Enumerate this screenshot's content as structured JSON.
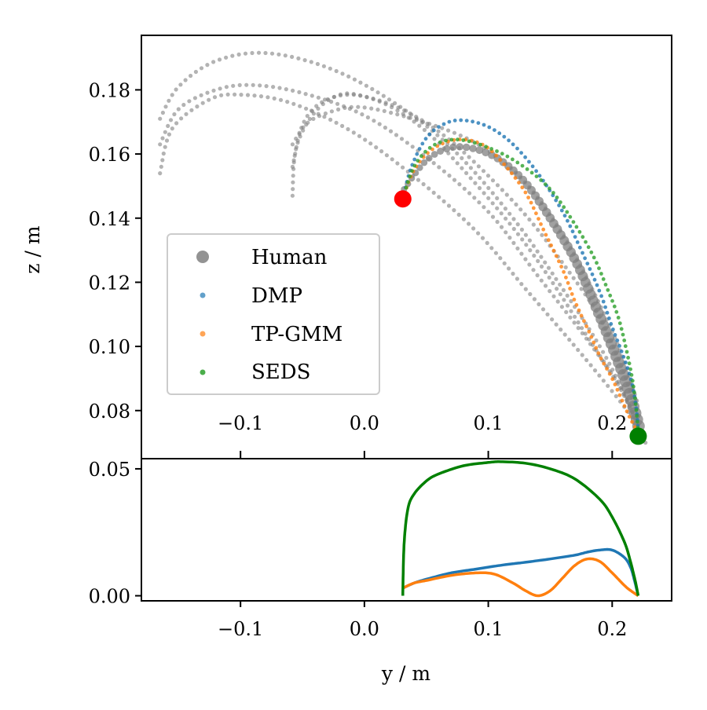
{
  "chart_data": [
    {
      "type": "scatter",
      "panel": "top",
      "title": "",
      "xlabel": "",
      "ylabel": "z / m",
      "xlim": [
        -0.18,
        0.248
      ],
      "ylim": [
        0.065,
        0.197
      ],
      "grid": false,
      "legend_position": "lower-left",
      "xticks": [
        -0.1,
        0.0,
        0.1,
        0.2
      ],
      "xtick_labels": [
        "−0.1",
        "0.0",
        "0.1",
        "0.2"
      ],
      "yticks": [
        0.08,
        0.1,
        0.12,
        0.14,
        0.16,
        0.18
      ],
      "ytick_labels": [
        "0.08",
        "0.10",
        "0.12",
        "0.14",
        "0.16",
        "0.18"
      ],
      "start_point": {
        "y": 0.031,
        "z": 0.146,
        "color": "#ff0000"
      },
      "goal_point": {
        "y": 0.221,
        "z": 0.072,
        "color": "#008000"
      },
      "series": [
        {
          "name": "Human",
          "color": "#808080",
          "kind": "human",
          "marker": "large",
          "demos": [
            [
              [
                -0.165,
                0.171
              ],
              [
                -0.15,
                0.181
              ],
              [
                -0.12,
                0.189
              ],
              [
                -0.08,
                0.1915
              ],
              [
                -0.03,
                0.187
              ],
              [
                0.02,
                0.177
              ],
              [
                0.07,
                0.162
              ],
              [
                0.12,
                0.14
              ],
              [
                0.16,
                0.118
              ],
              [
                0.19,
                0.1
              ],
              [
                0.21,
                0.085
              ],
              [
                0.228,
                0.069
              ]
            ],
            [
              [
                -0.165,
                0.163
              ],
              [
                -0.15,
                0.174
              ],
              [
                -0.12,
                0.18
              ],
              [
                -0.09,
                0.1815
              ],
              [
                -0.05,
                0.179
              ],
              [
                0.0,
                0.172
              ],
              [
                0.05,
                0.159
              ],
              [
                0.1,
                0.142
              ],
              [
                0.14,
                0.122
              ],
              [
                0.18,
                0.102
              ],
              [
                0.205,
                0.088
              ],
              [
                0.222,
                0.075
              ]
            ],
            [
              [
                -0.165,
                0.154
              ],
              [
                -0.155,
                0.168
              ],
              [
                -0.125,
                0.177
              ],
              [
                -0.1,
                0.1785
              ],
              [
                -0.06,
                0.176
              ],
              [
                -0.01,
                0.167
              ],
              [
                0.04,
                0.153
              ],
              [
                0.09,
                0.136
              ],
              [
                0.13,
                0.118
              ],
              [
                0.17,
                0.1
              ],
              [
                0.2,
                0.086
              ],
              [
                0.218,
                0.077
              ]
            ],
            [
              [
                -0.058,
                0.147
              ],
              [
                -0.055,
                0.162
              ],
              [
                -0.04,
                0.173
              ],
              [
                -0.02,
                0.1785
              ],
              [
                0.0,
                0.178
              ],
              [
                0.03,
                0.174
              ],
              [
                0.06,
                0.167
              ],
              [
                0.09,
                0.157
              ],
              [
                0.13,
                0.141
              ],
              [
                0.16,
                0.126
              ],
              [
                0.19,
                0.109
              ],
              [
                0.21,
                0.091
              ],
              [
                0.222,
                0.077
              ]
            ],
            [
              [
                -0.058,
                0.156
              ],
              [
                -0.05,
                0.169
              ],
              [
                -0.035,
                0.176
              ],
              [
                -0.01,
                0.1785
              ],
              [
                0.02,
                0.175
              ],
              [
                0.05,
                0.167
              ],
              [
                0.08,
                0.155
              ],
              [
                0.12,
                0.137
              ],
              [
                0.15,
                0.121
              ],
              [
                0.18,
                0.103
              ],
              [
                0.205,
                0.088
              ],
              [
                0.22,
                0.076
              ]
            ],
            [
              [
                -0.058,
                0.163
              ],
              [
                -0.045,
                0.17
              ],
              [
                -0.02,
                0.174
              ],
              [
                0.0,
                0.1745
              ],
              [
                0.03,
                0.172
              ],
              [
                0.07,
                0.167
              ],
              [
                0.1,
                0.161
              ],
              [
                0.13,
                0.151
              ],
              [
                0.16,
                0.135
              ],
              [
                0.185,
                0.117
              ],
              [
                0.205,
                0.1
              ],
              [
                0.22,
                0.083
              ]
            ],
            [
              [
                0.032,
                0.149
              ],
              [
                0.05,
                0.158
              ],
              [
                0.07,
                0.162
              ],
              [
                0.09,
                0.1615
              ],
              [
                0.11,
                0.158
              ],
              [
                0.13,
                0.151
              ],
              [
                0.15,
                0.14
              ],
              [
                0.17,
                0.127
              ],
              [
                0.185,
                0.114
              ],
              [
                0.2,
                0.1
              ],
              [
                0.21,
                0.09
              ],
              [
                0.218,
                0.08
              ],
              [
                0.222,
                0.074
              ]
            ]
          ]
        },
        {
          "name": "DMP",
          "color": "#1f77b4",
          "kind": "model",
          "points": [
            [
              0.031,
              0.146
            ],
            [
              0.038,
              0.156
            ],
            [
              0.05,
              0.165
            ],
            [
              0.065,
              0.1695
            ],
            [
              0.08,
              0.1705
            ],
            [
              0.1,
              0.1685
            ],
            [
              0.12,
              0.163
            ],
            [
              0.14,
              0.154
            ],
            [
              0.16,
              0.142
            ],
            [
              0.175,
              0.13
            ],
            [
              0.19,
              0.117
            ],
            [
              0.2,
              0.106
            ],
            [
              0.208,
              0.098
            ],
            [
              0.215,
              0.09
            ],
            [
              0.219,
              0.082
            ],
            [
              0.221,
              0.074
            ]
          ]
        },
        {
          "name": "TP-GMM",
          "color": "#ff7f0e",
          "kind": "model",
          "points": [
            [
              0.031,
              0.146
            ],
            [
              0.04,
              0.155
            ],
            [
              0.055,
              0.1615
            ],
            [
              0.075,
              0.1645
            ],
            [
              0.095,
              0.163
            ],
            [
              0.11,
              0.158
            ],
            [
              0.13,
              0.148
            ],
            [
              0.145,
              0.136
            ],
            [
              0.16,
              0.124
            ],
            [
              0.17,
              0.114
            ],
            [
              0.182,
              0.104
            ],
            [
              0.19,
              0.097
            ],
            [
              0.2,
              0.09
            ],
            [
              0.207,
              0.084
            ],
            [
              0.214,
              0.078
            ],
            [
              0.221,
              0.073
            ]
          ]
        },
        {
          "name": "SEDS",
          "color": "#2ca02c",
          "kind": "model",
          "points": [
            [
              0.031,
              0.146
            ],
            [
              0.04,
              0.156
            ],
            [
              0.055,
              0.1625
            ],
            [
              0.075,
              0.1645
            ],
            [
              0.1,
              0.162
            ],
            [
              0.125,
              0.157
            ],
            [
              0.15,
              0.149
            ],
            [
              0.17,
              0.138
            ],
            [
              0.185,
              0.128
            ],
            [
              0.195,
              0.119
            ],
            [
              0.205,
              0.109
            ],
            [
              0.212,
              0.098
            ],
            [
              0.217,
              0.088
            ],
            [
              0.22,
              0.078
            ],
            [
              0.221,
              0.072
            ]
          ]
        }
      ]
    },
    {
      "type": "line",
      "panel": "bottom",
      "title": "",
      "xlabel": "y / m",
      "ylabel": "",
      "xlim": [
        -0.18,
        0.248
      ],
      "ylim": [
        -0.002,
        0.054
      ],
      "grid": false,
      "xticks": [
        -0.1,
        0.0,
        0.1,
        0.2
      ],
      "xtick_labels": [
        "−0.1",
        "0.0",
        "0.1",
        "0.2"
      ],
      "yticks": [
        0.0,
        0.05
      ],
      "ytick_labels": [
        "0.00",
        "0.05"
      ],
      "series": [
        {
          "name": "DMP",
          "color": "#1f77b4",
          "x": [
            0.031,
            0.04,
            0.05,
            0.07,
            0.09,
            0.11,
            0.13,
            0.15,
            0.17,
            0.18,
            0.19,
            0.2,
            0.21,
            0.215,
            0.218,
            0.221
          ],
          "y": [
            0.003,
            0.005,
            0.0065,
            0.009,
            0.0105,
            0.012,
            0.0132,
            0.0145,
            0.016,
            0.0172,
            0.018,
            0.018,
            0.015,
            0.011,
            0.006,
            0.0
          ]
        },
        {
          "name": "TP-GMM",
          "color": "#ff7f0e",
          "x": [
            0.031,
            0.04,
            0.05,
            0.07,
            0.09,
            0.105,
            0.12,
            0.13,
            0.14,
            0.15,
            0.16,
            0.17,
            0.18,
            0.19,
            0.2,
            0.21,
            0.215,
            0.221
          ],
          "y": [
            0.003,
            0.005,
            0.006,
            0.008,
            0.009,
            0.0085,
            0.005,
            0.002,
            0.0,
            0.002,
            0.007,
            0.012,
            0.0145,
            0.0135,
            0.009,
            0.004,
            0.002,
            0.0
          ]
        },
        {
          "name": "SEDS",
          "color": "#008000",
          "x": [
            0.031,
            0.032,
            0.035,
            0.04,
            0.05,
            0.06,
            0.08,
            0.1,
            0.11,
            0.13,
            0.15,
            0.17,
            0.19,
            0.2,
            0.21,
            0.215,
            0.219,
            0.221
          ],
          "y": [
            0.0,
            0.02,
            0.034,
            0.04,
            0.0452,
            0.048,
            0.0512,
            0.0525,
            0.0528,
            0.0522,
            0.05,
            0.046,
            0.038,
            0.031,
            0.021,
            0.013,
            0.005,
            0.0
          ]
        }
      ]
    }
  ]
}
